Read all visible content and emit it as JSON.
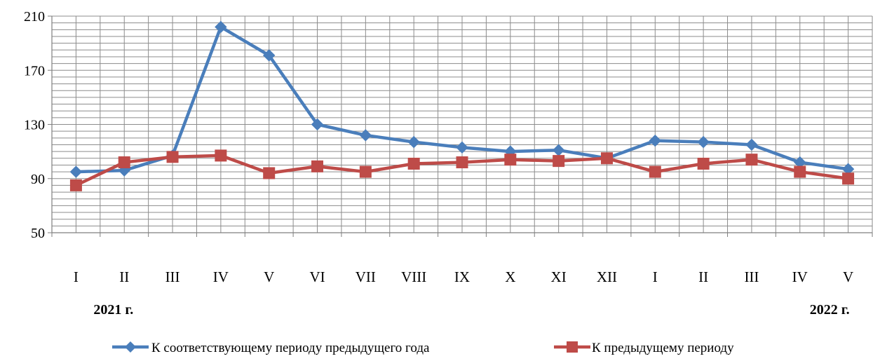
{
  "chart_data": {
    "type": "line",
    "title": "",
    "xlabel": "",
    "ylabel": "",
    "categories": [
      "I",
      "II",
      "III",
      "IV",
      "V",
      "VI",
      "VII",
      "VIII",
      "IX",
      "X",
      "XI",
      "XII",
      "I",
      "II",
      "III",
      "IV",
      "V"
    ],
    "year_labels": [
      {
        "text": "2021 г.",
        "align_category_index": 0
      },
      {
        "text": "2022 г.",
        "align_category_index": 16
      }
    ],
    "ylim": [
      50,
      210
    ],
    "y_ticks": [
      50,
      90,
      130,
      170,
      210
    ],
    "y_minor_step": 5,
    "grid": true,
    "legend_position": "bottom",
    "series": [
      {
        "name": "К соответствующему периоду предыдущего года",
        "color": "#4a7ebb",
        "marker": "diamond",
        "values": [
          95,
          96,
          107,
          202,
          181,
          130,
          122,
          117,
          113,
          110,
          111,
          105,
          118,
          117,
          115,
          102,
          97
        ]
      },
      {
        "name": "К предыдущему периоду",
        "color": "#be4b48",
        "marker": "square",
        "values": [
          85,
          102,
          106,
          107,
          94,
          99,
          95,
          101,
          102,
          104,
          103,
          105,
          95,
          101,
          104,
          95,
          90
        ]
      }
    ]
  }
}
